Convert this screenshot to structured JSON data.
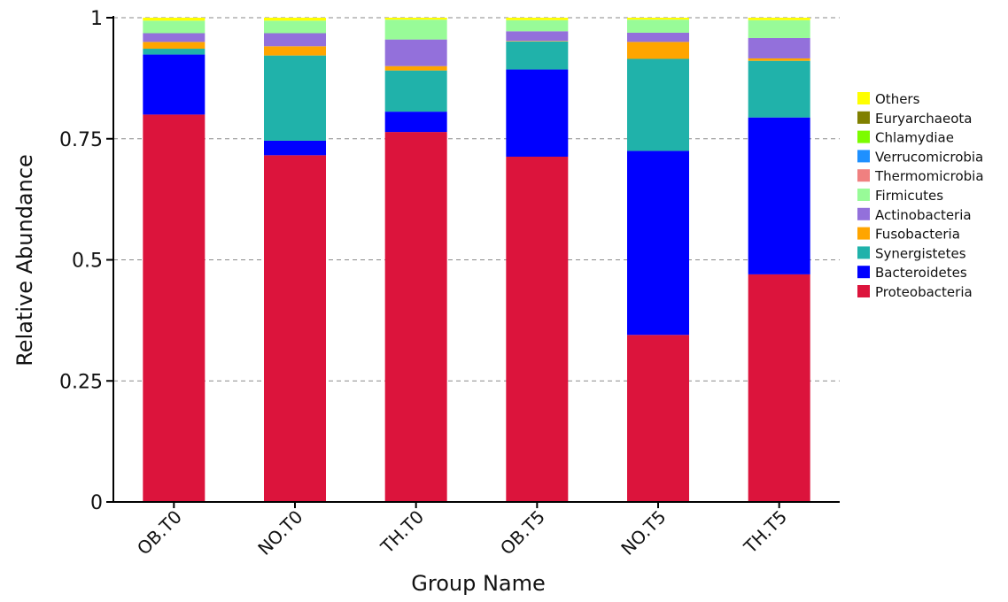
{
  "chart_data": {
    "type": "bar",
    "stacked": true,
    "xlabel": "Group Name",
    "ylabel": "Relative Abundance",
    "ylim": [
      0,
      1
    ],
    "yticks": [
      {
        "value": 0,
        "label": "0"
      },
      {
        "value": 0.25,
        "label": "0.25"
      },
      {
        "value": 0.5,
        "label": "0.5"
      },
      {
        "value": 0.75,
        "label": "0.75"
      },
      {
        "value": 1,
        "label": "1"
      }
    ],
    "grid": "dashed horizontal at major ticks",
    "legend_position": "right",
    "categories": [
      "OB.T0",
      "NO.T0",
      "TH.T0",
      "OB.T5",
      "NO.T5",
      "TH.T5"
    ],
    "series": [
      {
        "name": "Proteobacteria",
        "color": "#DC143C",
        "values": [
          0.8,
          0.716,
          0.764,
          0.713,
          0.345,
          0.47
        ]
      },
      {
        "name": "Bacteroidetes",
        "color": "#0000FF",
        "values": [
          0.124,
          0.03,
          0.042,
          0.18,
          0.38,
          0.324
        ]
      },
      {
        "name": "Synergistetes",
        "color": "#20B2AA",
        "values": [
          0.012,
          0.176,
          0.085,
          0.058,
          0.19,
          0.117
        ]
      },
      {
        "name": "Fusobacteria",
        "color": "#FFA500",
        "values": [
          0.014,
          0.019,
          0.009,
          0.001,
          0.035,
          0.005
        ]
      },
      {
        "name": "Actinobacteria",
        "color": "#9370DB",
        "values": [
          0.018,
          0.027,
          0.055,
          0.02,
          0.019,
          0.042
        ]
      },
      {
        "name": "Firmicutes",
        "color": "#98FB98",
        "values": [
          0.026,
          0.026,
          0.041,
          0.023,
          0.027,
          0.037
        ]
      },
      {
        "name": "Thermomicrobia",
        "color": "#F08080",
        "values": [
          0.0,
          0.0,
          0.0,
          0.0,
          0.0,
          0.0
        ]
      },
      {
        "name": "Verrucomicrobia",
        "color": "#1E90FF",
        "values": [
          0.0,
          0.0,
          0.0,
          0.0,
          0.0,
          0.0
        ]
      },
      {
        "name": "Chlamydiae",
        "color": "#7CFC00",
        "values": [
          0.0,
          0.0,
          0.0,
          0.0,
          0.0,
          0.0
        ]
      },
      {
        "name": "Euryarchaeota",
        "color": "#808000",
        "values": [
          0.0,
          0.0,
          0.0,
          0.0,
          0.0,
          0.0
        ]
      },
      {
        "name": "Others",
        "color": "#FFFF00",
        "values": [
          0.006,
          0.006,
          0.004,
          0.005,
          0.004,
          0.005
        ]
      }
    ]
  }
}
